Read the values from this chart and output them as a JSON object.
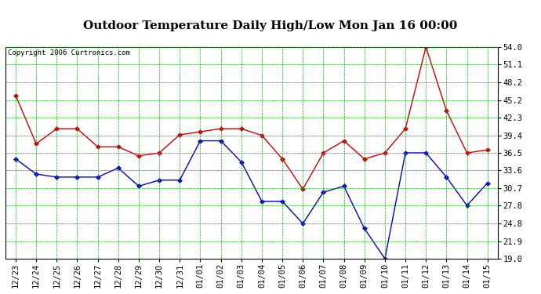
{
  "title": "Outdoor Temperature Daily High/Low Mon Jan 16 00:00",
  "copyright": "Copyright 2006 Curtronics.com",
  "x_labels": [
    "12/23",
    "12/24",
    "12/25",
    "12/26",
    "12/27",
    "12/28",
    "12/29",
    "12/30",
    "12/31",
    "01/01",
    "01/02",
    "01/03",
    "01/04",
    "01/05",
    "01/06",
    "01/07",
    "01/08",
    "01/09",
    "01/10",
    "01/11",
    "01/12",
    "01/13",
    "01/14",
    "01/15"
  ],
  "high_temps": [
    46.0,
    38.0,
    40.5,
    40.5,
    37.5,
    37.5,
    36.0,
    36.5,
    39.5,
    40.0,
    40.5,
    40.5,
    39.4,
    35.5,
    30.5,
    36.5,
    38.5,
    35.5,
    36.5,
    40.5,
    54.0,
    43.5,
    36.5,
    37.0
  ],
  "low_temps": [
    35.5,
    33.0,
    32.5,
    32.5,
    32.5,
    34.0,
    31.0,
    32.0,
    32.0,
    38.5,
    38.5,
    35.0,
    28.5,
    28.5,
    24.8,
    30.0,
    31.0,
    24.0,
    19.0,
    36.5,
    36.5,
    32.5,
    27.8,
    31.5
  ],
  "high_color": "#cc0000",
  "low_color": "#0000cc",
  "ylim_min": 19.0,
  "ylim_max": 54.0,
  "yticks": [
    19.0,
    21.9,
    24.8,
    27.8,
    30.7,
    33.6,
    36.5,
    39.4,
    42.3,
    45.2,
    48.2,
    51.1,
    54.0
  ],
  "bg_color": "#ffffff",
  "plot_bg_color": "#ffffff",
  "grid_color": "#00bb00",
  "title_fontsize": 11,
  "tick_fontsize": 7.5,
  "copyright_fontsize": 6.5
}
